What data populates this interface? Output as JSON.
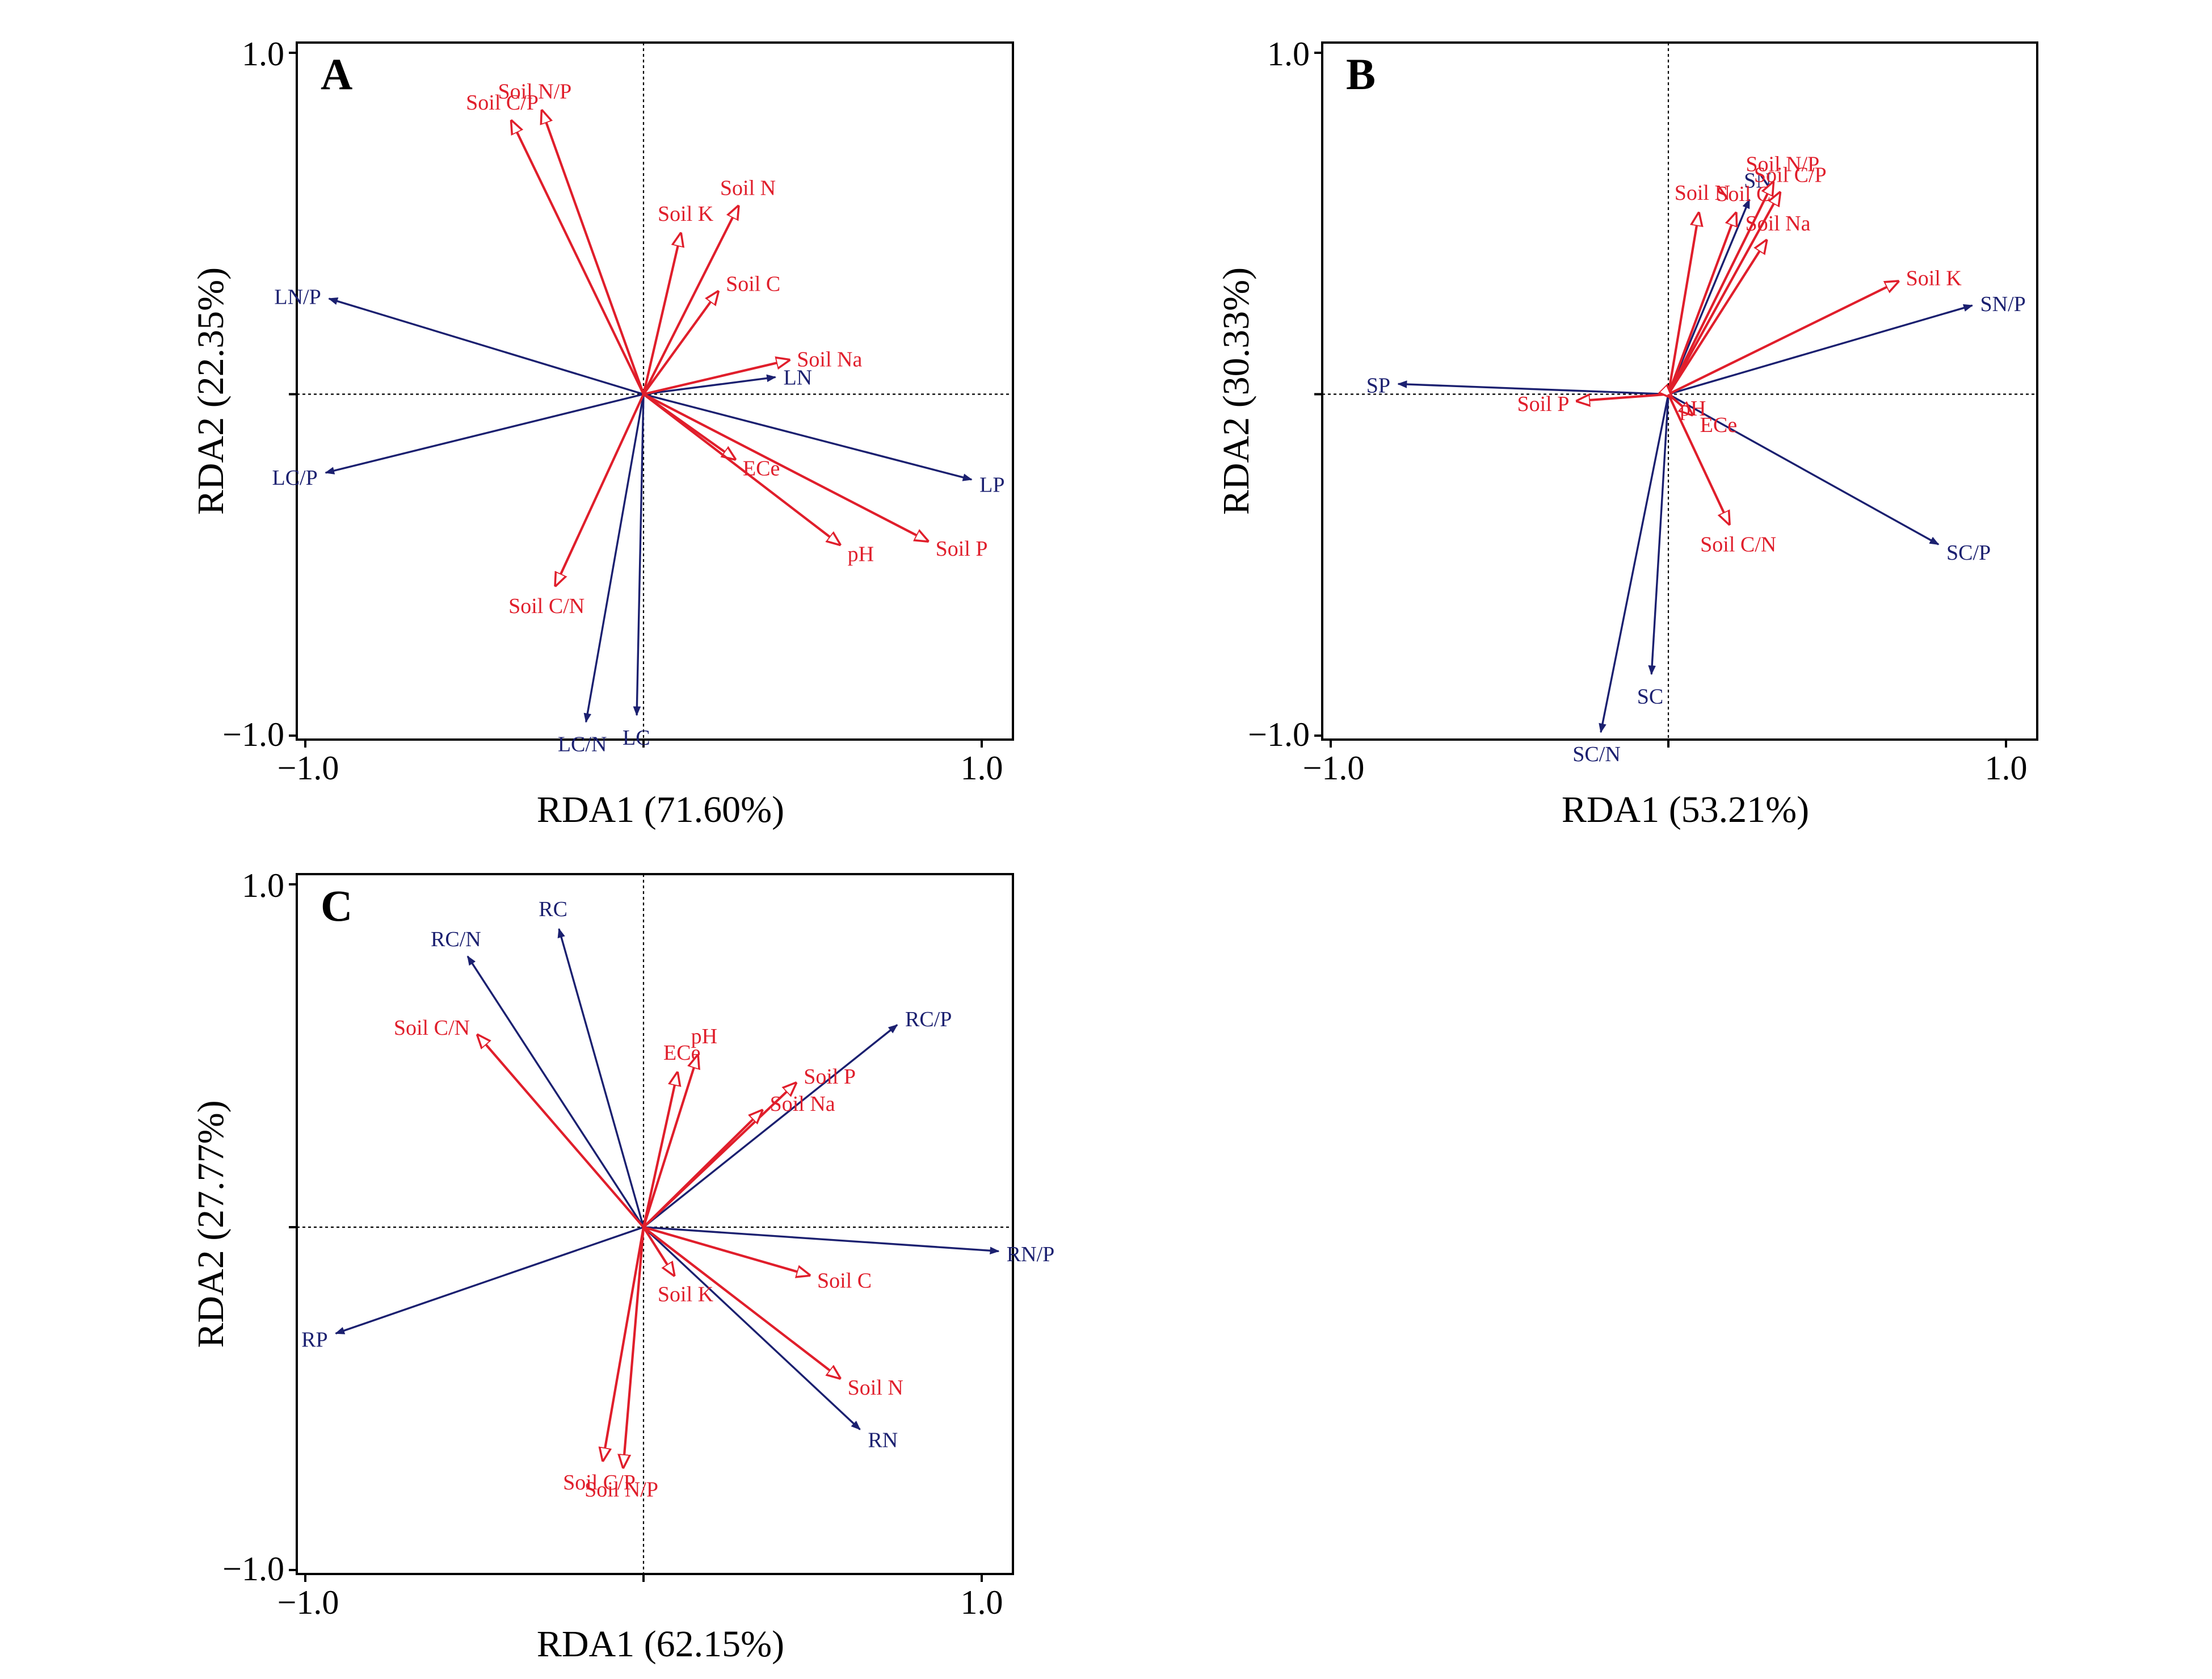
{
  "colors": {
    "environment": "#e01e2b",
    "response": "#1b2070",
    "frame": "#000000"
  },
  "chart_data": [
    {
      "type": "scatter",
      "panel_label": "A",
      "xlabel": "RDA1 (71.60%)",
      "ylabel": "RDA2 (22.35%)",
      "xlim": [
        -1.0,
        1.0
      ],
      "ylim": [
        -1.0,
        1.0
      ],
      "x_tick_labels": [
        "−1.0",
        "1.0"
      ],
      "y_tick_labels": [
        "1.0",
        "−1.0"
      ],
      "grid": false,
      "reference_lines": "dotted lines at x=0 and y=0",
      "response_vectors": [
        {
          "label": "LN/P",
          "x": -0.93,
          "y": 0.28
        },
        {
          "label": "LN",
          "x": 0.39,
          "y": 0.05
        },
        {
          "label": "LP",
          "x": 0.97,
          "y": -0.25
        },
        {
          "label": "LC/P",
          "x": -0.94,
          "y": -0.23
        },
        {
          "label": "LC/N",
          "x": -0.17,
          "y": -0.96
        },
        {
          "label": "LC",
          "x": -0.02,
          "y": -0.94
        }
      ],
      "environment_vectors": [
        {
          "label": "Soil C/P",
          "x": -0.39,
          "y": 0.8
        },
        {
          "label": "Soil N/P",
          "x": -0.3,
          "y": 0.83
        },
        {
          "label": "Soil K",
          "x": 0.11,
          "y": 0.47
        },
        {
          "label": "Soil N",
          "x": 0.28,
          "y": 0.55
        },
        {
          "label": "Soil C",
          "x": 0.22,
          "y": 0.3
        },
        {
          "label": "Soil Na",
          "x": 0.43,
          "y": 0.1
        },
        {
          "label": "ECe",
          "x": 0.27,
          "y": -0.19
        },
        {
          "label": "pH",
          "x": 0.58,
          "y": -0.44
        },
        {
          "label": "Soil P",
          "x": 0.84,
          "y": -0.43
        },
        {
          "label": "Soil C/N",
          "x": -0.26,
          "y": -0.56
        }
      ]
    },
    {
      "type": "scatter",
      "panel_label": "B",
      "xlabel": "RDA1 (53.21%)",
      "ylabel": "RDA2 (30.33%)",
      "xlim": [
        -1.0,
        1.0
      ],
      "ylim": [
        -1.0,
        1.0
      ],
      "x_tick_labels": [
        "−1.0",
        "1.0"
      ],
      "y_tick_labels": [
        "1.0",
        "−1.0"
      ],
      "grid": false,
      "reference_lines": "dotted lines at x=0 and y=0",
      "response_vectors": [
        {
          "label": "SN",
          "x": 0.24,
          "y": 0.57
        },
        {
          "label": "SN/P",
          "x": 0.9,
          "y": 0.26
        },
        {
          "label": "SP",
          "x": -0.8,
          "y": 0.03
        },
        {
          "label": "SC/P",
          "x": 0.8,
          "y": -0.44
        },
        {
          "label": "SC",
          "x": -0.05,
          "y": -0.82
        },
        {
          "label": "SC/N",
          "x": -0.2,
          "y": -0.99
        }
      ],
      "environment_vectors": [
        {
          "label": "Soil N",
          "x": 0.09,
          "y": 0.53
        },
        {
          "label": "Soil C",
          "x": 0.2,
          "y": 0.53
        },
        {
          "label": "Soil N/P",
          "x": 0.31,
          "y": 0.62
        },
        {
          "label": "Soil C/P",
          "x": 0.33,
          "y": 0.59
        },
        {
          "label": "Soil Na",
          "x": 0.29,
          "y": 0.45
        },
        {
          "label": "Soil K",
          "x": 0.68,
          "y": 0.33
        },
        {
          "label": "Soil P",
          "x": -0.27,
          "y": -0.02
        },
        {
          "label": "ECe",
          "x": 0.07,
          "y": -0.06
        },
        {
          "label": "pH",
          "x": 0.01,
          "y": -0.01
        },
        {
          "label": "Soil C/N",
          "x": 0.18,
          "y": -0.38
        }
      ]
    },
    {
      "type": "scatter",
      "panel_label": "C",
      "xlabel": "RDA1 (62.15%)",
      "ylabel": "RDA2 (27.77%)",
      "xlim": [
        -1.0,
        1.0
      ],
      "ylim": [
        -1.0,
        1.0
      ],
      "x_tick_labels": [
        "−1.0",
        "1.0"
      ],
      "y_tick_labels": [
        "1.0",
        "−1.0"
      ],
      "grid": false,
      "reference_lines": "dotted lines at x=0 and y=0",
      "response_vectors": [
        {
          "label": "RC/N",
          "x": -0.52,
          "y": 0.79
        },
        {
          "label": "RC",
          "x": -0.25,
          "y": 0.87
        },
        {
          "label": "RC/P",
          "x": 0.75,
          "y": 0.59
        },
        {
          "label": "RN/P",
          "x": 1.05,
          "y": -0.07
        },
        {
          "label": "RP",
          "x": -0.91,
          "y": -0.31
        },
        {
          "label": "RN",
          "x": 0.64,
          "y": -0.59
        }
      ],
      "environment_vectors": [
        {
          "label": "Soil C/N",
          "x": -0.49,
          "y": 0.56
        },
        {
          "label": "ECe",
          "x": 0.1,
          "y": 0.45
        },
        {
          "label": "pH",
          "x": 0.16,
          "y": 0.5
        },
        {
          "label": "Soil P",
          "x": 0.45,
          "y": 0.42
        },
        {
          "label": "Soil Na",
          "x": 0.35,
          "y": 0.34
        },
        {
          "label": "Soil C",
          "x": 0.49,
          "y": -0.14
        },
        {
          "label": "Soil K",
          "x": 0.09,
          "y": -0.14
        },
        {
          "label": "Soil N",
          "x": 0.58,
          "y": -0.44
        },
        {
          "label": "Soil C/P",
          "x": -0.12,
          "y": -0.68
        },
        {
          "label": "Soil N/P",
          "x": -0.06,
          "y": -0.7
        }
      ]
    }
  ]
}
